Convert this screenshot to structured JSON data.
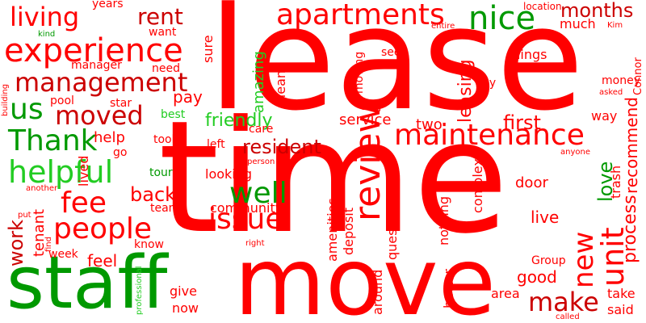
{
  "word_cloud": {
    "colors": {
      "red": "#ff0000",
      "dark_red": "#cc0000",
      "green": "#009900",
      "light_green": "#22cc22"
    },
    "words": [
      {
        "text": "lease",
        "color": "red"
      },
      {
        "text": "time",
        "color": "red"
      },
      {
        "text": "move",
        "color": "red"
      },
      {
        "text": "staff",
        "color": "green"
      },
      {
        "text": "apartments",
        "color": "red"
      },
      {
        "text": "experience",
        "color": "red"
      },
      {
        "text": "management",
        "color": "dark_red"
      },
      {
        "text": "maintenance",
        "color": "red"
      },
      {
        "text": "living",
        "color": "red"
      },
      {
        "text": "rent",
        "color": "dark_red"
      },
      {
        "text": "nice",
        "color": "green"
      },
      {
        "text": "months",
        "color": "dark_red"
      },
      {
        "text": "moved",
        "color": "dark_red"
      },
      {
        "text": "us",
        "color": "green"
      },
      {
        "text": "Thank",
        "color": "green"
      },
      {
        "text": "helpful",
        "color": "lgreen"
      },
      {
        "text": "fee",
        "color": "red"
      },
      {
        "text": "people",
        "color": "red"
      },
      {
        "text": "well",
        "color": "green"
      },
      {
        "text": "issue",
        "color": "red"
      },
      {
        "text": "review",
        "color": "red"
      },
      {
        "text": "resident",
        "color": "dark_red"
      },
      {
        "text": "friendly",
        "color": "lgreen"
      },
      {
        "text": "back",
        "color": "red"
      },
      {
        "text": "unit",
        "color": "red"
      },
      {
        "text": "new",
        "color": "red"
      },
      {
        "text": "love",
        "color": "green"
      },
      {
        "text": "make",
        "color": "red"
      },
      {
        "text": "work",
        "color": "dark_red"
      },
      {
        "text": "recommend",
        "color": "red"
      },
      {
        "text": "process",
        "color": "red"
      },
      {
        "text": "leasing",
        "color": "red"
      },
      {
        "text": "first",
        "color": "red"
      },
      {
        "text": "live",
        "color": "red"
      },
      {
        "text": "years",
        "color": "red"
      },
      {
        "text": "location",
        "color": "red"
      },
      {
        "text": "much",
        "color": "red"
      },
      {
        "text": "want",
        "color": "red"
      },
      {
        "text": "sure",
        "color": "red"
      },
      {
        "text": "kind",
        "color": "green"
      },
      {
        "text": "entire",
        "color": "red"
      },
      {
        "text": "Kim",
        "color": "red"
      },
      {
        "text": "manager",
        "color": "red"
      },
      {
        "text": "need",
        "color": "red"
      },
      {
        "text": "amazing",
        "color": "lgreen"
      },
      {
        "text": "see",
        "color": "red"
      },
      {
        "text": "things",
        "color": "red"
      },
      {
        "text": "moving",
        "color": "red"
      },
      {
        "text": "clean",
        "color": "red"
      },
      {
        "text": "say",
        "color": "red"
      },
      {
        "text": "money",
        "color": "red"
      },
      {
        "text": "Connor",
        "color": "red"
      },
      {
        "text": "asked",
        "color": "red"
      },
      {
        "text": "building",
        "color": "red"
      },
      {
        "text": "pool",
        "color": "red"
      },
      {
        "text": "star",
        "color": "red"
      },
      {
        "text": "pay",
        "color": "red"
      },
      {
        "text": "dog",
        "color": "red"
      },
      {
        "text": "best",
        "color": "lgreen"
      },
      {
        "text": "way",
        "color": "red"
      },
      {
        "text": "help",
        "color": "red"
      },
      {
        "text": "care",
        "color": "red"
      },
      {
        "text": "service",
        "color": "red"
      },
      {
        "text": "two",
        "color": "red"
      },
      {
        "text": "go",
        "color": "red"
      },
      {
        "text": "took",
        "color": "red"
      },
      {
        "text": "left",
        "color": "red"
      },
      {
        "text": "anyone",
        "color": "red"
      },
      {
        "text": "trash",
        "color": "red"
      },
      {
        "text": "person",
        "color": "red"
      },
      {
        "text": "tour",
        "color": "green"
      },
      {
        "text": "looking",
        "color": "red"
      },
      {
        "text": "another",
        "color": "red"
      },
      {
        "text": "lived",
        "color": "red"
      },
      {
        "text": "team",
        "color": "red"
      },
      {
        "text": "community",
        "color": "red"
      },
      {
        "text": "door",
        "color": "red"
      },
      {
        "text": "complex",
        "color": "red"
      },
      {
        "text": "tenant",
        "color": "red"
      },
      {
        "text": "put",
        "color": "red"
      },
      {
        "text": "find",
        "color": "red"
      },
      {
        "text": "know",
        "color": "red"
      },
      {
        "text": "right",
        "color": "red"
      },
      {
        "text": "question",
        "color": "red"
      },
      {
        "text": "deposit",
        "color": "red"
      },
      {
        "text": "amenities",
        "color": "red"
      },
      {
        "text": "nothing",
        "color": "red"
      },
      {
        "text": "week",
        "color": "red"
      },
      {
        "text": "feel",
        "color": "red"
      },
      {
        "text": "professional",
        "color": "lgreen"
      },
      {
        "text": "give",
        "color": "red"
      },
      {
        "text": "now",
        "color": "red"
      },
      {
        "text": "around",
        "color": "red"
      },
      {
        "text": "better",
        "color": "red"
      },
      {
        "text": "Group",
        "color": "red"
      },
      {
        "text": "good",
        "color": "red"
      },
      {
        "text": "area",
        "color": "red"
      },
      {
        "text": "take",
        "color": "red"
      },
      {
        "text": "said",
        "color": "red"
      },
      {
        "text": "called",
        "color": "red"
      }
    ]
  }
}
